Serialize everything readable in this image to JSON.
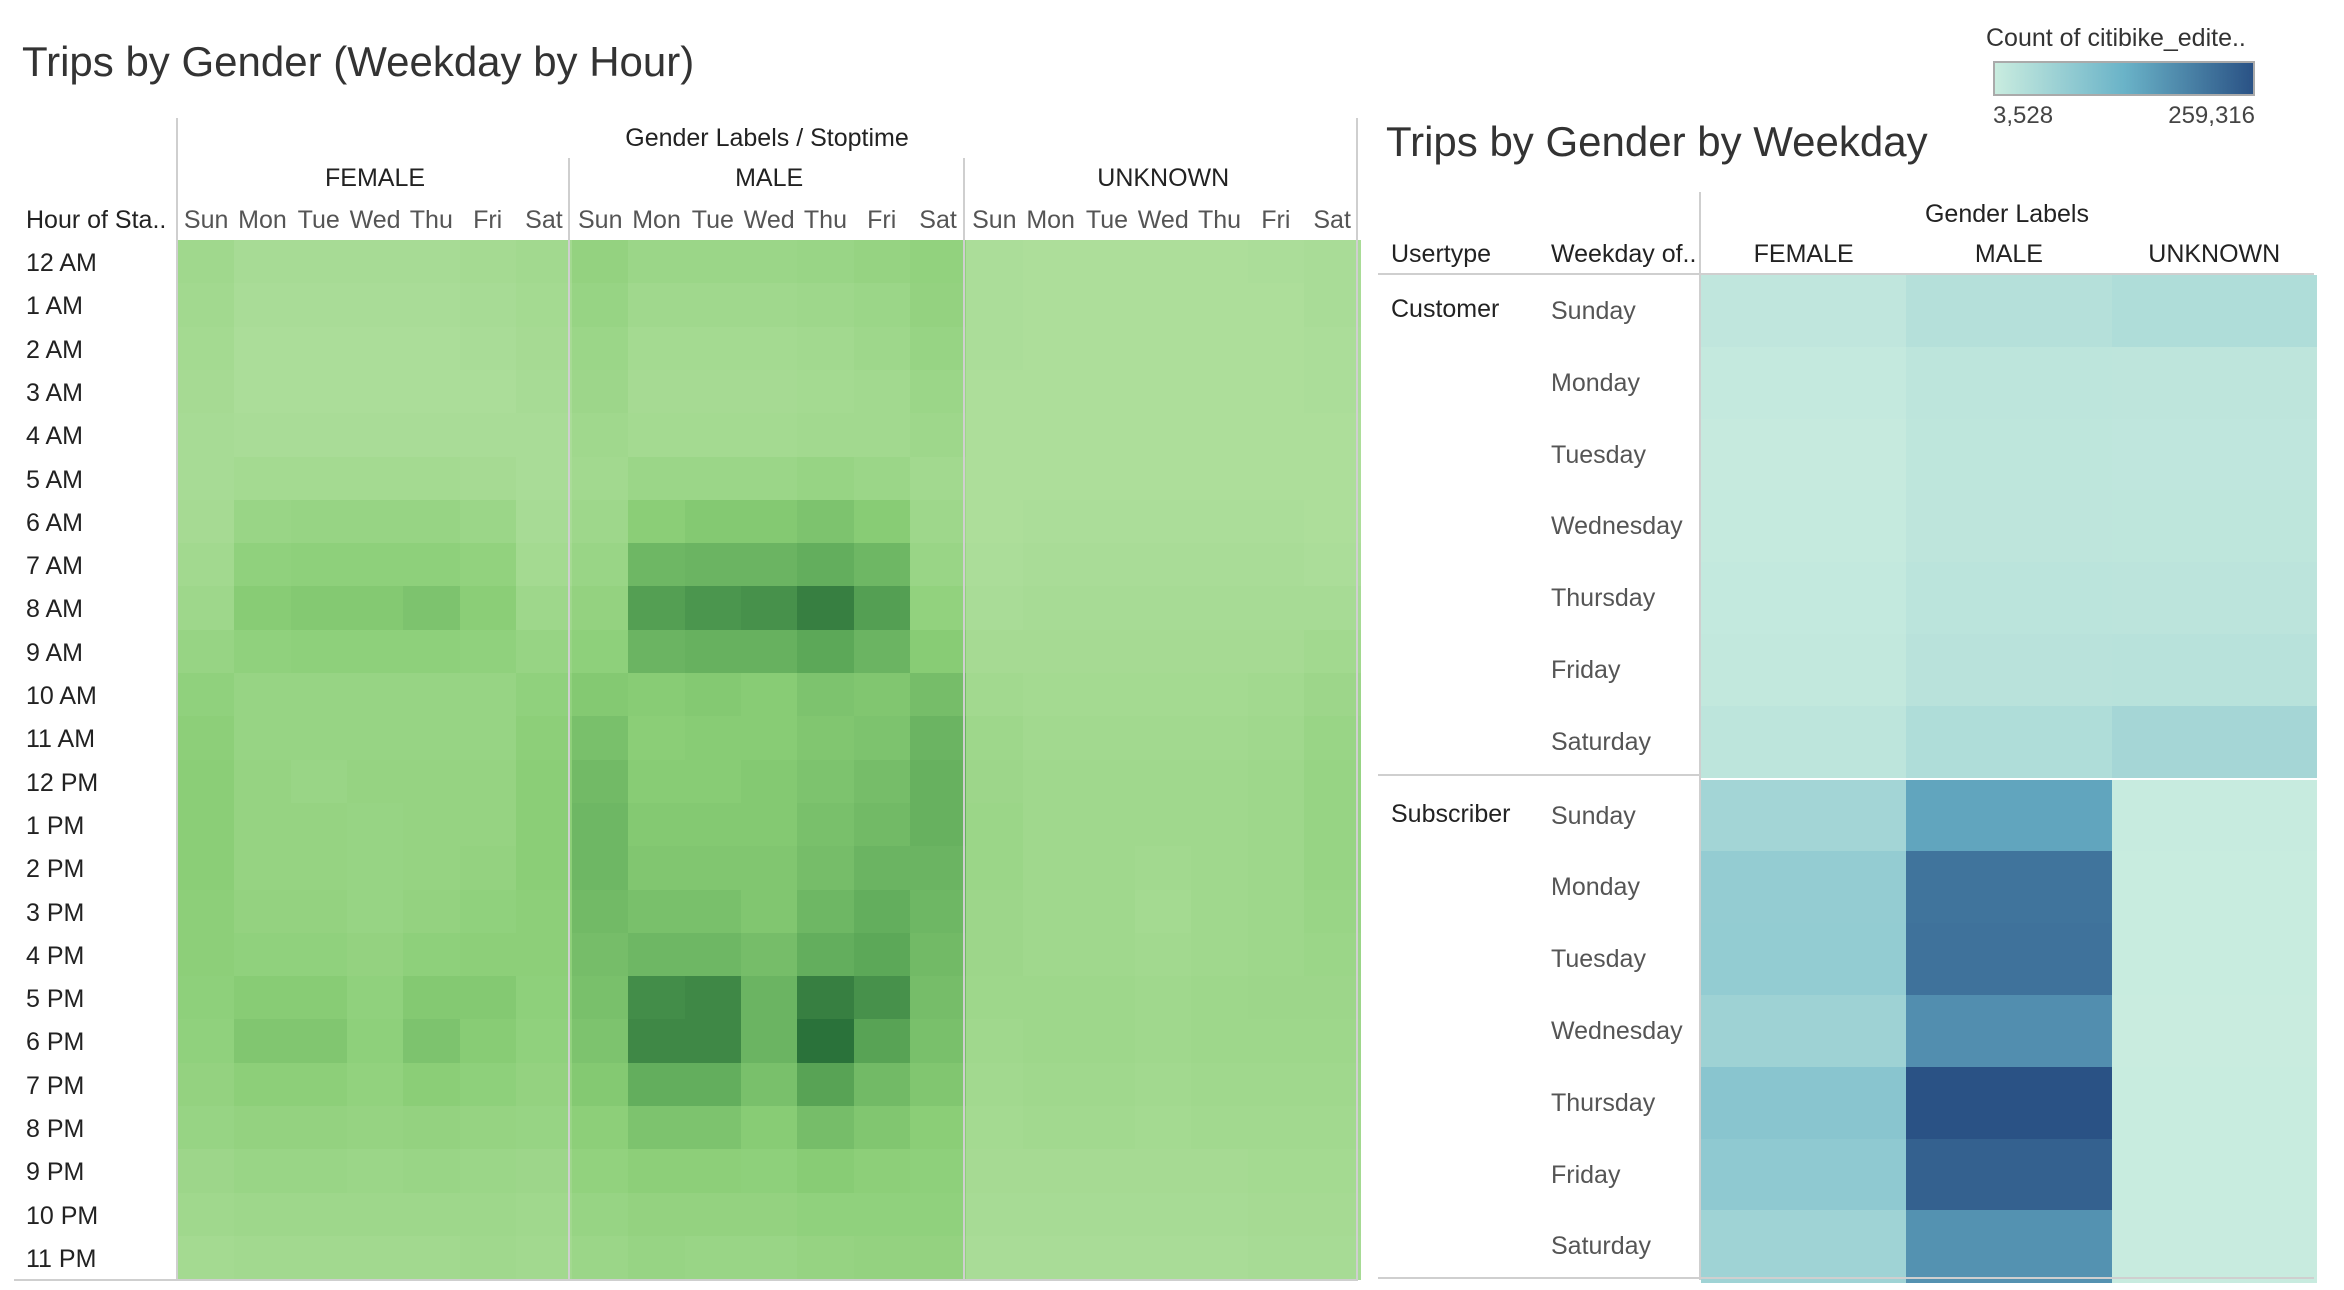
{
  "left_chart": {
    "title": "Trips by Gender (Weekday by Hour)",
    "column_header": "Gender Labels / Stoptime",
    "row_header": "Hour of Sta..",
    "genders": [
      "FEMALE",
      "MALE",
      "UNKNOWN"
    ],
    "days": [
      "Sun",
      "Mon",
      "Tue",
      "Wed",
      "Thu",
      "Fri",
      "Sat"
    ],
    "hours": [
      "12 AM",
      "1 AM",
      "2 AM",
      "3 AM",
      "4 AM",
      "5 AM",
      "6 AM",
      "7 AM",
      "8 AM",
      "9 AM",
      "10 AM",
      "11 AM",
      "12 PM",
      "1 PM",
      "2 PM",
      "3 PM",
      "4 PM",
      "5 PM",
      "6 PM",
      "7 PM",
      "8 PM",
      "9 PM",
      "10 PM",
      "11 PM"
    ]
  },
  "right_chart": {
    "title": "Trips by Gender by Weekday",
    "column_header": "Gender Labels",
    "usertype_header": "Usertype",
    "weekday_header": "Weekday of..",
    "genders": [
      "FEMALE",
      "MALE",
      "UNKNOWN"
    ],
    "usertypes": [
      {
        "label": "Customer",
        "weekdays": [
          "Sunday",
          "Monday",
          "Tuesday",
          "Wednesday",
          "Thursday",
          "Friday",
          "Saturday"
        ]
      },
      {
        "label": "Subscriber",
        "weekdays": [
          "Sunday",
          "Monday",
          "Tuesday",
          "Wednesday",
          "Thursday",
          "Friday",
          "Saturday"
        ]
      }
    ]
  },
  "legend": {
    "title": "Count of citibike_edite..",
    "min_label": "3,528",
    "max_label": "259,316",
    "min": 3528,
    "max": 259316,
    "colors": [
      "#c9ecdf",
      "#6ab3c8",
      "#2a5285"
    ]
  },
  "chart_data": [
    {
      "type": "heatmap",
      "title": "Trips by Gender (Weekday by Hour)",
      "xlabel": "Gender Labels / Stoptime",
      "ylabel": "Hour of Sta..",
      "categories_y": [
        "12 AM",
        "1 AM",
        "2 AM",
        "3 AM",
        "4 AM",
        "5 AM",
        "6 AM",
        "7 AM",
        "8 AM",
        "9 AM",
        "10 AM",
        "11 AM",
        "12 PM",
        "1 PM",
        "2 PM",
        "3 PM",
        "4 PM",
        "5 PM",
        "6 PM",
        "7 PM",
        "8 PM",
        "9 PM",
        "10 PM",
        "11 PM"
      ],
      "categories_x": [
        "Sun",
        "Mon",
        "Tue",
        "Wed",
        "Thu",
        "Fri",
        "Sat"
      ],
      "intensity_range": [
        0,
        1
      ],
      "series": [
        {
          "name": "FEMALE",
          "values": [
            [
              0.2,
              0.12,
              0.12,
              0.12,
              0.12,
              0.15,
              0.18
            ],
            [
              0.18,
              0.1,
              0.1,
              0.1,
              0.1,
              0.12,
              0.16
            ],
            [
              0.16,
              0.08,
              0.08,
              0.08,
              0.08,
              0.1,
              0.14
            ],
            [
              0.14,
              0.08,
              0.08,
              0.08,
              0.08,
              0.08,
              0.12
            ],
            [
              0.12,
              0.1,
              0.1,
              0.1,
              0.1,
              0.1,
              0.1
            ],
            [
              0.12,
              0.16,
              0.16,
              0.16,
              0.16,
              0.14,
              0.1
            ],
            [
              0.14,
              0.28,
              0.3,
              0.3,
              0.3,
              0.26,
              0.12
            ],
            [
              0.18,
              0.38,
              0.4,
              0.4,
              0.4,
              0.36,
              0.16
            ],
            [
              0.22,
              0.46,
              0.48,
              0.48,
              0.52,
              0.44,
              0.22
            ],
            [
              0.3,
              0.38,
              0.4,
              0.4,
              0.4,
              0.38,
              0.3
            ],
            [
              0.38,
              0.3,
              0.3,
              0.3,
              0.3,
              0.3,
              0.38
            ],
            [
              0.42,
              0.3,
              0.3,
              0.3,
              0.3,
              0.3,
              0.42
            ],
            [
              0.44,
              0.32,
              0.28,
              0.32,
              0.32,
              0.32,
              0.44
            ],
            [
              0.44,
              0.32,
              0.32,
              0.3,
              0.32,
              0.32,
              0.44
            ],
            [
              0.44,
              0.32,
              0.32,
              0.3,
              0.32,
              0.34,
              0.44
            ],
            [
              0.42,
              0.34,
              0.34,
              0.3,
              0.34,
              0.38,
              0.42
            ],
            [
              0.42,
              0.38,
              0.38,
              0.34,
              0.4,
              0.42,
              0.42
            ],
            [
              0.4,
              0.46,
              0.46,
              0.38,
              0.48,
              0.48,
              0.4
            ],
            [
              0.38,
              0.5,
              0.5,
              0.4,
              0.52,
              0.46,
              0.38
            ],
            [
              0.34,
              0.42,
              0.42,
              0.36,
              0.44,
              0.4,
              0.34
            ],
            [
              0.3,
              0.34,
              0.34,
              0.32,
              0.34,
              0.32,
              0.3
            ],
            [
              0.24,
              0.28,
              0.28,
              0.26,
              0.28,
              0.26,
              0.24
            ],
            [
              0.2,
              0.22,
              0.22,
              0.22,
              0.22,
              0.22,
              0.2
            ],
            [
              0.16,
              0.18,
              0.18,
              0.18,
              0.18,
              0.2,
              0.18
            ]
          ]
        },
        {
          "name": "MALE",
          "values": [
            [
              0.34,
              0.26,
              0.26,
              0.26,
              0.28,
              0.32,
              0.36
            ],
            [
              0.3,
              0.2,
              0.2,
              0.2,
              0.22,
              0.26,
              0.34
            ],
            [
              0.26,
              0.16,
              0.16,
              0.16,
              0.18,
              0.22,
              0.3
            ],
            [
              0.24,
              0.14,
              0.14,
              0.14,
              0.16,
              0.18,
              0.26
            ],
            [
              0.2,
              0.16,
              0.16,
              0.16,
              0.18,
              0.18,
              0.22
            ],
            [
              0.18,
              0.26,
              0.26,
              0.26,
              0.3,
              0.26,
              0.18
            ],
            [
              0.22,
              0.44,
              0.48,
              0.48,
              0.52,
              0.46,
              0.22
            ],
            [
              0.28,
              0.6,
              0.62,
              0.62,
              0.66,
              0.6,
              0.28
            ],
            [
              0.34,
              0.74,
              0.78,
              0.8,
              0.88,
              0.74,
              0.36
            ],
            [
              0.4,
              0.62,
              0.64,
              0.64,
              0.7,
              0.62,
              0.46
            ],
            [
              0.48,
              0.46,
              0.48,
              0.46,
              0.52,
              0.5,
              0.56
            ],
            [
              0.54,
              0.44,
              0.46,
              0.46,
              0.5,
              0.52,
              0.62
            ],
            [
              0.58,
              0.46,
              0.46,
              0.48,
              0.52,
              0.56,
              0.64
            ],
            [
              0.6,
              0.48,
              0.48,
              0.48,
              0.54,
              0.58,
              0.64
            ],
            [
              0.6,
              0.5,
              0.5,
              0.5,
              0.56,
              0.62,
              0.62
            ],
            [
              0.58,
              0.54,
              0.54,
              0.5,
              0.6,
              0.66,
              0.6
            ],
            [
              0.56,
              0.6,
              0.6,
              0.56,
              0.66,
              0.7,
              0.58
            ],
            [
              0.54,
              0.82,
              0.84,
              0.62,
              0.88,
              0.8,
              0.56
            ],
            [
              0.52,
              0.84,
              0.84,
              0.62,
              0.94,
              0.72,
              0.54
            ],
            [
              0.48,
              0.66,
              0.66,
              0.54,
              0.72,
              0.58,
              0.5
            ],
            [
              0.42,
              0.52,
              0.52,
              0.46,
              0.56,
              0.5,
              0.44
            ],
            [
              0.36,
              0.42,
              0.42,
              0.4,
              0.46,
              0.42,
              0.4
            ],
            [
              0.3,
              0.34,
              0.34,
              0.34,
              0.38,
              0.38,
              0.38
            ],
            [
              0.26,
              0.3,
              0.28,
              0.28,
              0.32,
              0.34,
              0.34
            ]
          ]
        },
        {
          "name": "UNKNOWN",
          "values": [
            [
              0.08,
              0.06,
              0.06,
              0.06,
              0.06,
              0.08,
              0.1
            ],
            [
              0.08,
              0.06,
              0.06,
              0.06,
              0.06,
              0.06,
              0.1
            ],
            [
              0.08,
              0.06,
              0.06,
              0.06,
              0.06,
              0.06,
              0.08
            ],
            [
              0.06,
              0.06,
              0.06,
              0.06,
              0.06,
              0.06,
              0.08
            ],
            [
              0.06,
              0.06,
              0.06,
              0.06,
              0.06,
              0.06,
              0.06
            ],
            [
              0.06,
              0.06,
              0.06,
              0.06,
              0.06,
              0.06,
              0.06
            ],
            [
              0.06,
              0.08,
              0.08,
              0.08,
              0.08,
              0.08,
              0.06
            ],
            [
              0.08,
              0.1,
              0.1,
              0.1,
              0.1,
              0.1,
              0.08
            ],
            [
              0.1,
              0.12,
              0.12,
              0.12,
              0.12,
              0.12,
              0.12
            ],
            [
              0.14,
              0.14,
              0.14,
              0.14,
              0.14,
              0.14,
              0.18
            ],
            [
              0.18,
              0.16,
              0.16,
              0.16,
              0.16,
              0.18,
              0.24
            ],
            [
              0.22,
              0.18,
              0.18,
              0.18,
              0.18,
              0.2,
              0.28
            ],
            [
              0.24,
              0.2,
              0.2,
              0.2,
              0.2,
              0.22,
              0.3
            ],
            [
              0.26,
              0.2,
              0.2,
              0.2,
              0.2,
              0.22,
              0.3
            ],
            [
              0.26,
              0.2,
              0.2,
              0.18,
              0.2,
              0.22,
              0.3
            ],
            [
              0.24,
              0.2,
              0.2,
              0.16,
              0.2,
              0.22,
              0.28
            ],
            [
              0.24,
              0.2,
              0.2,
              0.18,
              0.2,
              0.22,
              0.26
            ],
            [
              0.22,
              0.22,
              0.22,
              0.2,
              0.22,
              0.24,
              0.24
            ],
            [
              0.2,
              0.22,
              0.22,
              0.2,
              0.22,
              0.22,
              0.22
            ],
            [
              0.18,
              0.2,
              0.2,
              0.18,
              0.2,
              0.2,
              0.2
            ],
            [
              0.16,
              0.18,
              0.18,
              0.16,
              0.18,
              0.18,
              0.18
            ],
            [
              0.14,
              0.14,
              0.14,
              0.14,
              0.14,
              0.16,
              0.16
            ],
            [
              0.12,
              0.12,
              0.12,
              0.12,
              0.12,
              0.14,
              0.14
            ],
            [
              0.1,
              0.1,
              0.1,
              0.1,
              0.1,
              0.12,
              0.12
            ]
          ]
        }
      ]
    },
    {
      "type": "heatmap",
      "title": "Trips by Gender by Weekday",
      "xlabel": "Gender Labels",
      "categories_x": [
        "FEMALE",
        "MALE",
        "UNKNOWN"
      ],
      "categories_y": [
        "Sunday",
        "Monday",
        "Tuesday",
        "Wednesday",
        "Thursday",
        "Friday",
        "Saturday"
      ],
      "color_range": [
        3528,
        259316
      ],
      "series": [
        {
          "name": "Customer",
          "values": [
            [
              16000,
              30000,
              38000
            ],
            [
              10000,
              20000,
              19000
            ],
            [
              8000,
              18000,
              17000
            ],
            [
              9000,
              19000,
              18000
            ],
            [
              11000,
              22000,
              21000
            ],
            [
              13000,
              25000,
              27000
            ],
            [
              20000,
              38000,
              52000
            ]
          ]
        },
        {
          "name": "Subscriber",
          "values": [
            [
              55000,
              150000,
              6000
            ],
            [
              75000,
              215000,
              4500
            ],
            [
              76000,
              217000,
              4500
            ],
            [
              62000,
              180000,
              4000
            ],
            [
              90000,
              259316,
              4500
            ],
            [
              82000,
              240000,
              4500
            ],
            [
              60000,
              175000,
              5000
            ]
          ]
        }
      ]
    }
  ]
}
